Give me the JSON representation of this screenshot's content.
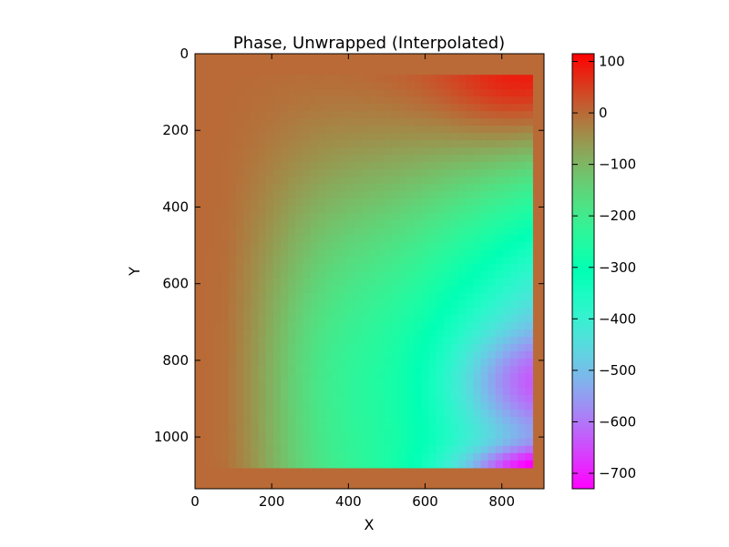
{
  "chart_data": {
    "type": "heatmap",
    "title": "Phase, Unwrapped (Interpolated)",
    "xlabel": "X",
    "ylabel": "Y",
    "xlim": [
      0,
      910
    ],
    "ylim": [
      1135,
      0
    ],
    "x_ticks": [
      0,
      200,
      400,
      600,
      800
    ],
    "y_ticks": [
      0,
      200,
      400,
      600,
      800,
      1000
    ],
    "colorbar": {
      "colormap": "rainbow",
      "range": [
        -730,
        115
      ],
      "ticks": [
        100,
        0,
        -100,
        -200,
        -300,
        -400,
        -500,
        -600,
        -700
      ],
      "tick_labels": [
        "100",
        "0",
        "−100",
        "−200",
        "−300",
        "−400",
        "−500",
        "−600",
        "−700"
      ]
    },
    "background_value": 0,
    "interpolated_region": {
      "x": [
        30,
        880
      ],
      "y": [
        55,
        1080
      ]
    },
    "grid": false,
    "colors": {
      "axes": "#000000",
      "background": "#ffffff"
    }
  }
}
